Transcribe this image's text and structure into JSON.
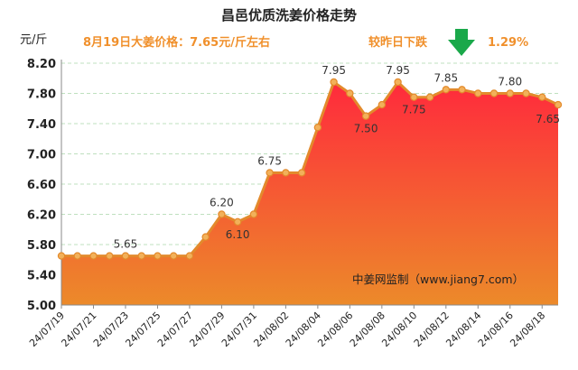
{
  "chart_data": {
    "type": "area",
    "title": "昌邑优质洗姜价格走势",
    "ylabel": "元/斤",
    "note_left": "8月19日大姜价格：7.65元/斤左右",
    "note_right_label": "较昨日下跌",
    "note_right_pct": "1.29%",
    "trend_icon": "down-arrow-icon",
    "watermark": "中姜网监制（www.jiang7.com）",
    "ylim": [
      5.0,
      8.2
    ],
    "yticks": [
      "5.00",
      "5.40",
      "5.80",
      "6.20",
      "6.60",
      "7.00",
      "7.40",
      "7.80",
      "8.20"
    ],
    "grid": true,
    "x": [
      "24/07/19",
      "24/07/20",
      "24/07/21",
      "24/07/22",
      "24/07/23",
      "24/07/24",
      "24/07/25",
      "24/07/26",
      "24/07/27",
      "24/07/28",
      "24/07/29",
      "24/07/30",
      "24/07/31",
      "24/08/01",
      "24/08/02",
      "24/08/03",
      "24/08/04",
      "24/08/05",
      "24/08/06",
      "24/08/07",
      "24/08/08",
      "24/08/09",
      "24/08/10",
      "24/08/11",
      "24/08/12",
      "24/08/13",
      "24/08/14",
      "24/08/15",
      "24/08/16",
      "24/08/17",
      "24/08/18",
      "24/08/19"
    ],
    "xtick_labels": [
      "24/07/19",
      "24/07/21",
      "24/07/23",
      "24/07/25",
      "24/07/27",
      "24/07/29",
      "24/07/31",
      "24/08/02",
      "24/08/04",
      "24/08/06",
      "24/08/08",
      "24/08/10",
      "24/08/12",
      "24/08/14",
      "24/08/16",
      "24/08/18"
    ],
    "values": [
      5.65,
      5.65,
      5.65,
      5.65,
      5.65,
      5.65,
      5.65,
      5.65,
      5.65,
      5.9,
      6.2,
      6.1,
      6.2,
      6.75,
      6.75,
      6.75,
      7.35,
      7.95,
      7.8,
      7.5,
      7.65,
      7.95,
      7.75,
      7.75,
      7.85,
      7.85,
      7.8,
      7.8,
      7.8,
      7.8,
      7.75,
      7.65
    ],
    "data_labels": [
      {
        "x": "24/07/23",
        "text": "5.65"
      },
      {
        "x": "24/07/29",
        "text": "6.20"
      },
      {
        "x": "24/07/30",
        "text": "6.10"
      },
      {
        "x": "24/08/01",
        "text": "6.75"
      },
      {
        "x": "24/08/05",
        "text": "7.95"
      },
      {
        "x": "24/08/07",
        "text": "7.50"
      },
      {
        "x": "24/08/09",
        "text": "7.95"
      },
      {
        "x": "24/08/10",
        "text": "7.75"
      },
      {
        "x": "24/08/12",
        "text": "7.85"
      },
      {
        "x": "24/08/16",
        "text": "7.80"
      },
      {
        "x": "24/08/19",
        "text": "7.65"
      }
    ],
    "colors": {
      "fill_top": "#ff2a3c",
      "fill_bottom": "#ec8a2a",
      "line": "#e38a2c",
      "marker": "#f2b15a",
      "grid": "#bfe0bf",
      "note": "#f0902c",
      "arrow": "#1aa84a"
    }
  }
}
